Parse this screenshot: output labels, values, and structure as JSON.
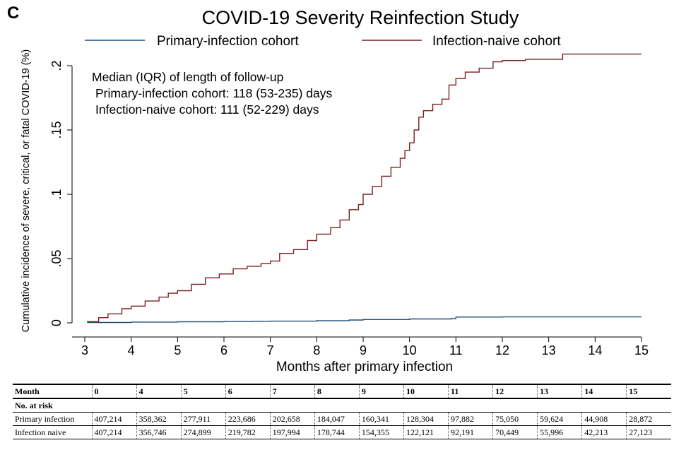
{
  "panel_letter": "C",
  "chart_data": {
    "type": "line",
    "title": "COVID-19 Severity Reinfection Study",
    "xlabel": "Months after primary infection",
    "ylabel": "Cumulative incidence of severe, critical, or fatal COVID-19 (%)",
    "xlim": [
      3,
      15
    ],
    "ylim": [
      0,
      0.22
    ],
    "x_ticks": [
      3,
      4,
      5,
      6,
      7,
      8,
      9,
      10,
      11,
      12,
      13,
      14,
      15
    ],
    "x_tick_labels": [
      "3",
      "4",
      "5",
      "6",
      "7",
      "8",
      "9",
      "10",
      "11",
      "12",
      "13",
      "14",
      "15"
    ],
    "y_ticks": [
      0,
      0.05,
      0.1,
      0.15,
      0.2
    ],
    "y_tick_labels": [
      "0",
      ".05",
      ".1",
      ".15",
      ".2"
    ],
    "grid": false,
    "legend_placement": "top",
    "series": [
      {
        "name": "Primary-infection cohort",
        "color": "#1f4e79",
        "x": [
          3.05,
          4,
          5,
          6,
          6.6,
          7,
          8,
          8.7,
          9,
          10,
          10.9,
          11,
          12,
          13,
          14,
          15
        ],
        "y": [
          0.0003,
          0.0006,
          0.0008,
          0.001,
          0.0012,
          0.0013,
          0.0017,
          0.0022,
          0.0026,
          0.003,
          0.0033,
          0.0045,
          0.0046,
          0.0046,
          0.0046,
          0.0046
        ]
      },
      {
        "name": "Infection-naive cohort",
        "color": "#7a2020",
        "x": [
          3.05,
          3.3,
          3.5,
          3.8,
          4,
          4.3,
          4.6,
          4.8,
          5,
          5.3,
          5.6,
          5.9,
          6.2,
          6.5,
          6.8,
          7,
          7.2,
          7.5,
          7.8,
          8,
          8.3,
          8.5,
          8.7,
          8.9,
          9,
          9.2,
          9.4,
          9.6,
          9.8,
          9.9,
          10,
          10.1,
          10.2,
          10.3,
          10.5,
          10.7,
          10.85,
          11,
          11.2,
          11.5,
          11.8,
          12,
          12.5,
          13,
          13.3,
          14,
          15
        ],
        "y": [
          0.001,
          0.004,
          0.007,
          0.011,
          0.013,
          0.017,
          0.02,
          0.023,
          0.025,
          0.03,
          0.035,
          0.038,
          0.042,
          0.044,
          0.046,
          0.048,
          0.054,
          0.057,
          0.064,
          0.069,
          0.074,
          0.08,
          0.088,
          0.092,
          0.1,
          0.106,
          0.114,
          0.121,
          0.128,
          0.134,
          0.14,
          0.15,
          0.16,
          0.165,
          0.17,
          0.174,
          0.185,
          0.19,
          0.195,
          0.198,
          0.203,
          0.204,
          0.205,
          0.205,
          0.209,
          0.209,
          0.209
        ]
      }
    ],
    "annotations": [
      "Median (IQR) of length of follow-up",
      "Primary-infection cohort: 118 (53-235) days",
      "Infection-naive cohort: 111 (52-229) days"
    ]
  },
  "risk_table": {
    "header_label": "Month",
    "months": [
      "0",
      "4",
      "5",
      "6",
      "7",
      "8",
      "9",
      "10",
      "11",
      "12",
      "13",
      "14",
      "15"
    ],
    "subheader": "No. at risk",
    "rows": [
      {
        "label": "Primary infection",
        "values": [
          "407,214",
          "358,362",
          "277,911",
          "223,686",
          "202,658",
          "184,047",
          "160,341",
          "128,304",
          "97,882",
          "75,050",
          "59,624",
          "44,908",
          "28,872"
        ]
      },
      {
        "label": "Infection naive",
        "values": [
          "407,214",
          "356,746",
          "274,899",
          "219,782",
          "197,994",
          "178,744",
          "154,355",
          "122,121",
          "92,191",
          "70,449",
          "55,996",
          "42,213",
          "27,123"
        ]
      }
    ]
  }
}
